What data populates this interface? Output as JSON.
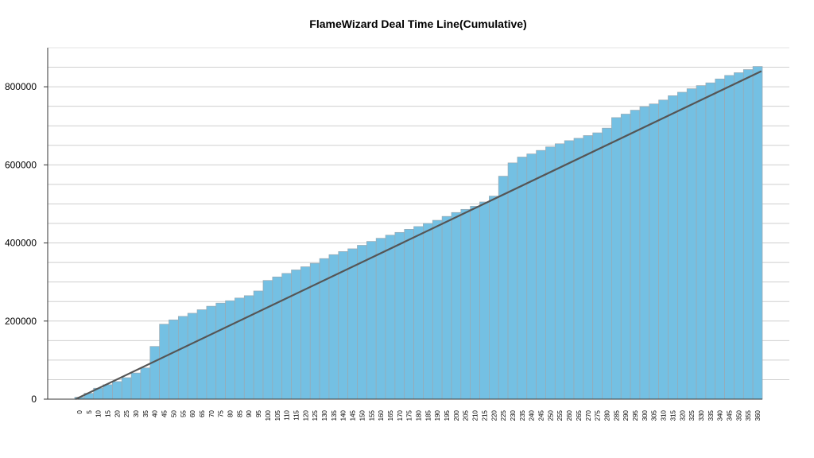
{
  "chart_data": {
    "type": "bar",
    "title": "FlameWizard Deal Time Line(Cumulative)",
    "xlabel": "",
    "ylabel": "",
    "ylim": [
      0,
      900000
    ],
    "y_ticks": [
      0,
      200000,
      400000,
      600000,
      800000
    ],
    "y_tick_labels": [
      "0",
      "200000",
      "400000",
      "600000",
      "800000"
    ],
    "categories": [
      "0",
      "5",
      "10",
      "15",
      "20",
      "25",
      "30",
      "35",
      "40",
      "45",
      "50",
      "55",
      "60",
      "65",
      "70",
      "75",
      "80",
      "85",
      "90",
      "95",
      "100",
      "105",
      "110",
      "115",
      "120",
      "125",
      "130",
      "135",
      "140",
      "145",
      "150",
      "155",
      "160",
      "165",
      "170",
      "175",
      "180",
      "185",
      "190",
      "195",
      "200",
      "205",
      "210",
      "215",
      "220",
      "225",
      "230",
      "235",
      "240",
      "245",
      "250",
      "255",
      "260",
      "265",
      "270",
      "275",
      "280",
      "285",
      "290",
      "295",
      "300",
      "305",
      "310",
      "315",
      "320",
      "325",
      "330",
      "335",
      "340",
      "345",
      "350",
      "355",
      "360"
    ],
    "values": [
      5000,
      15000,
      28000,
      37000,
      45000,
      55000,
      67000,
      80000,
      135000,
      192000,
      203000,
      212000,
      220000,
      229000,
      238000,
      246000,
      252000,
      259000,
      265000,
      277000,
      304000,
      313000,
      322000,
      331000,
      339000,
      348000,
      360000,
      370000,
      378000,
      385000,
      394000,
      404000,
      412000,
      420000,
      427000,
      435000,
      442000,
      450000,
      458000,
      468000,
      478000,
      486000,
      494000,
      505000,
      520000,
      571000,
      605000,
      620000,
      628000,
      637000,
      646000,
      654000,
      662000,
      668000,
      675000,
      682000,
      694000,
      721000,
      730000,
      740000,
      749000,
      756000,
      766000,
      777000,
      786000,
      795000,
      803000,
      810000,
      820000,
      829000,
      836000,
      844000,
      852000
    ],
    "trend_line": {
      "start": [
        0,
        0
      ],
      "end": [
        360,
        840000
      ]
    },
    "colors": {
      "bar": "#74c0e3",
      "bar_edge": "#9aa9b2",
      "trend": "#555555",
      "grid": "#cfcfcf"
    },
    "grid": true,
    "legend": "none"
  }
}
